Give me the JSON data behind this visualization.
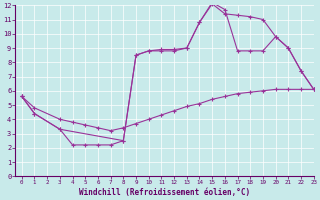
{
  "bg_color": "#c8eaea",
  "line_color": "#993399",
  "xlabel": "Windchill (Refroidissement éolien,°C)",
  "xlim": [
    -0.5,
    23
  ],
  "ylim": [
    0,
    12
  ],
  "xticks": [
    0,
    1,
    2,
    3,
    4,
    5,
    6,
    7,
    8,
    9,
    10,
    11,
    12,
    13,
    14,
    15,
    16,
    17,
    18,
    19,
    20,
    21,
    22,
    23
  ],
  "yticks": [
    0,
    1,
    2,
    3,
    4,
    5,
    6,
    7,
    8,
    9,
    10,
    11,
    12
  ],
  "line1": {
    "x": [
      0,
      1,
      3,
      4,
      5,
      6,
      7,
      8,
      9,
      10,
      11,
      12,
      13,
      14,
      15,
      16,
      17,
      18,
      19,
      20,
      21,
      22,
      23
    ],
    "y": [
      5.6,
      4.4,
      3.3,
      2.2,
      2.2,
      2.2,
      2.2,
      2.5,
      8.5,
      8.8,
      8.8,
      8.8,
      9.0,
      10.8,
      12.2,
      11.7,
      8.8,
      8.8,
      8.8,
      9.8,
      9.0,
      7.4,
      6.1
    ]
  },
  "line2": {
    "x": [
      0,
      1,
      3,
      4,
      5,
      6,
      7,
      8,
      9,
      10,
      11,
      12,
      13,
      14,
      15,
      16,
      17,
      18,
      19,
      20,
      21,
      22,
      23
    ],
    "y": [
      5.6,
      4.8,
      4.0,
      3.8,
      3.6,
      3.4,
      3.2,
      3.4,
      3.7,
      4.0,
      4.3,
      4.6,
      4.9,
      5.1,
      5.4,
      5.6,
      5.8,
      5.9,
      6.0,
      6.1,
      6.1,
      6.1,
      6.1
    ]
  },
  "line3": {
    "x": [
      0,
      1,
      3,
      8,
      9,
      10,
      11,
      12,
      13,
      14,
      15,
      16,
      17,
      18,
      19,
      20,
      21,
      22,
      23
    ],
    "y": [
      5.6,
      4.4,
      3.3,
      2.5,
      8.5,
      8.8,
      8.9,
      8.9,
      9.0,
      10.8,
      12.1,
      11.4,
      11.3,
      11.2,
      11.0,
      9.8,
      9.0,
      7.4,
      6.1
    ]
  }
}
